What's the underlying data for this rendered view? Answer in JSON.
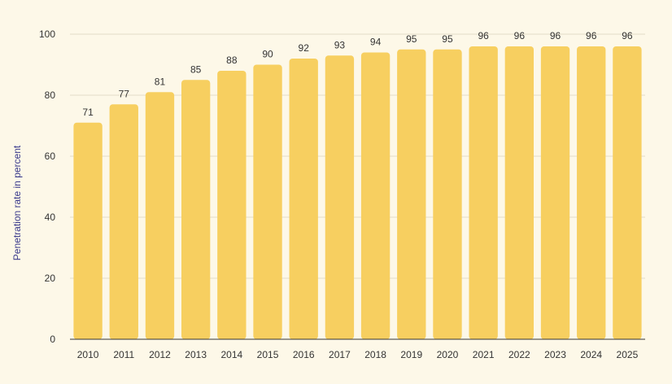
{
  "chart_data": {
    "type": "bar",
    "title": "",
    "xlabel": "",
    "ylabel": "Penetration rate in percent",
    "ylim": [
      0,
      100
    ],
    "yticks": [
      0,
      20,
      40,
      60,
      80,
      100
    ],
    "grid": true,
    "bar_color": "#f7cf60",
    "categories": [
      "2010",
      "2011",
      "2012",
      "2013",
      "2014",
      "2015",
      "2016",
      "2017",
      "2018",
      "2019",
      "2020",
      "2021",
      "2022",
      "2023",
      "2024",
      "2025"
    ],
    "values": [
      71,
      77,
      81,
      85,
      88,
      90,
      92,
      93,
      94,
      95,
      95,
      96,
      96,
      96,
      96,
      96
    ]
  }
}
